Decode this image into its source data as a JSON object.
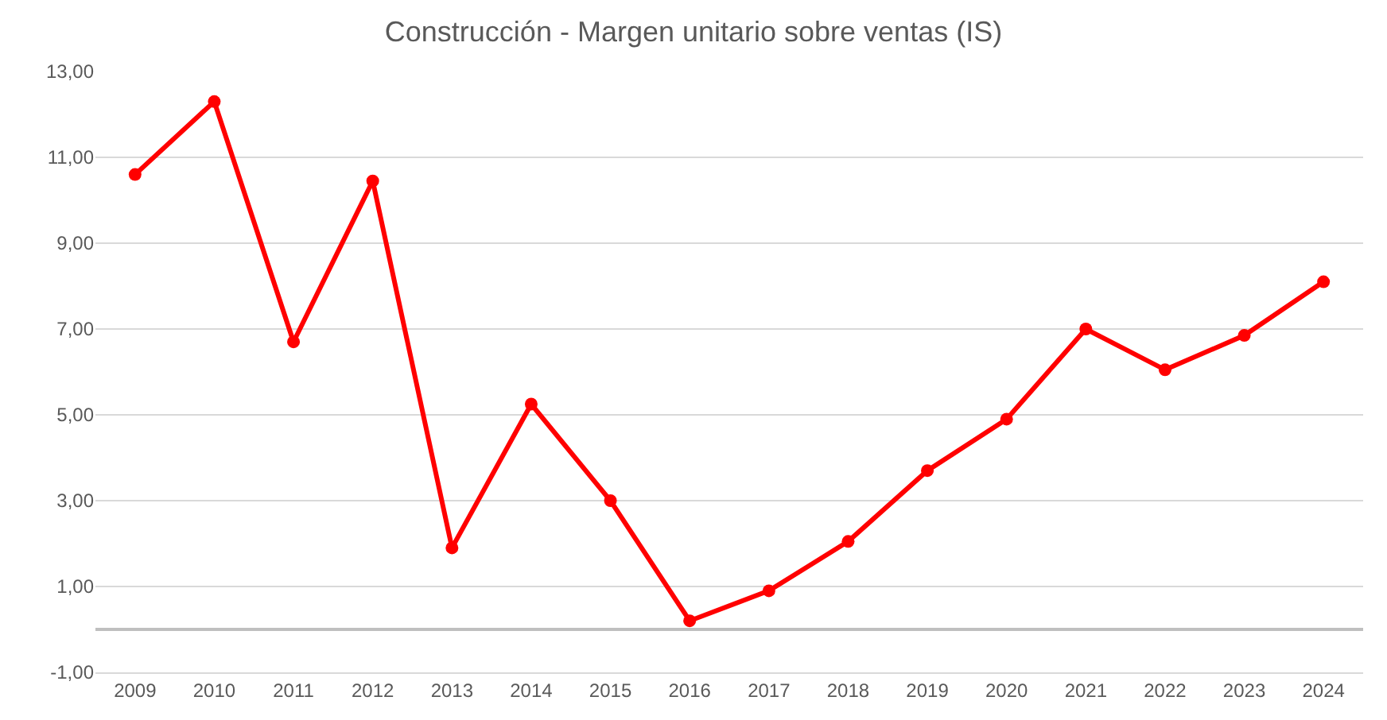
{
  "chart_data": {
    "type": "line",
    "title": "Construcción - Margen unitario sobre ventas (IS)",
    "categories": [
      "2009",
      "2010",
      "2011",
      "2012",
      "2013",
      "2014",
      "2015",
      "2016",
      "2017",
      "2018",
      "2019",
      "2020",
      "2021",
      "2022",
      "2023",
      "2024"
    ],
    "series": [
      {
        "color": "#ff0000",
        "values": [
          10.6,
          12.3,
          6.7,
          10.45,
          1.9,
          5.25,
          3.0,
          0.2,
          0.9,
          2.05,
          3.7,
          4.9,
          7.0,
          6.05,
          6.85,
          8.1
        ]
      }
    ],
    "ylim": [
      -1,
      13
    ],
    "yticks": [
      {
        "value": -1,
        "label": "-1,00"
      },
      {
        "value": 1,
        "label": "1,00"
      },
      {
        "value": 3,
        "label": "3,00"
      },
      {
        "value": 5,
        "label": "5,00"
      },
      {
        "value": 7,
        "label": "7,00"
      },
      {
        "value": 9,
        "label": "9,00"
      },
      {
        "value": 11,
        "label": "11,00"
      },
      {
        "value": 13,
        "label": "13,00"
      }
    ],
    "grid": "y",
    "marker": "circle",
    "line_style": "solid"
  }
}
